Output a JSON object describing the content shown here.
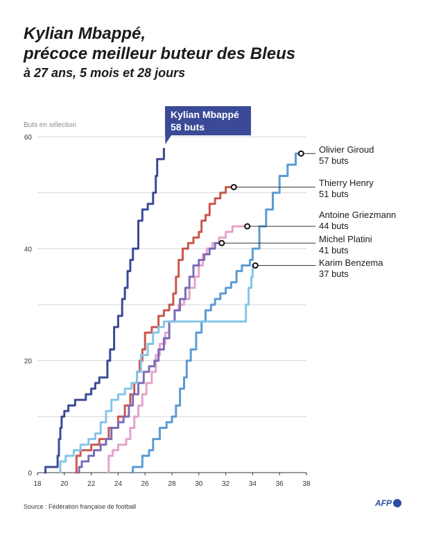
{
  "title_line1": "Kylian Mbappé,",
  "title_line2": "précoce meilleur buteur des Bleus",
  "subtitle": "à 27 ans, 5 mois et 28 jours",
  "source": "Source : Fédération française de football",
  "logo": "AFP",
  "chart_data": {
    "type": "line",
    "ylabel": "Buts en sélection",
    "xlim": [
      18,
      38
    ],
    "ylim": [
      0,
      60
    ],
    "xticks": [
      18,
      20,
      22,
      24,
      26,
      28,
      30,
      32,
      34,
      36,
      38
    ],
    "yticks": [
      0,
      20,
      40,
      60
    ],
    "series": [
      {
        "name": "Kylian Mbappé",
        "value_label": "58 buts",
        "color": "#3a4a96",
        "points": [
          [
            18.5,
            0
          ],
          [
            18.6,
            1
          ],
          [
            19.4,
            1
          ],
          [
            19.5,
            3
          ],
          [
            19.6,
            6
          ],
          [
            19.7,
            8
          ],
          [
            19.8,
            10
          ],
          [
            20.0,
            11
          ],
          [
            20.3,
            12
          ],
          [
            20.8,
            13
          ],
          [
            21.6,
            14
          ],
          [
            22.0,
            15
          ],
          [
            22.3,
            16
          ],
          [
            22.6,
            17
          ],
          [
            23.0,
            17
          ],
          [
            23.2,
            20
          ],
          [
            23.4,
            22
          ],
          [
            23.7,
            26
          ],
          [
            24.0,
            28
          ],
          [
            24.3,
            31
          ],
          [
            24.5,
            33
          ],
          [
            24.7,
            36
          ],
          [
            24.9,
            38
          ],
          [
            25.1,
            40
          ],
          [
            25.5,
            45
          ],
          [
            25.8,
            47
          ],
          [
            26.2,
            48
          ],
          [
            26.6,
            50
          ],
          [
            26.8,
            53
          ],
          [
            26.9,
            56
          ],
          [
            27.4,
            58
          ]
        ]
      },
      {
        "name": "Olivier Giroud",
        "value_label": "57 buts",
        "color": "#5b9bd5",
        "points": [
          [
            25.0,
            0
          ],
          [
            25.1,
            1
          ],
          [
            25.8,
            3
          ],
          [
            26.3,
            4
          ],
          [
            26.6,
            6
          ],
          [
            27.1,
            8
          ],
          [
            27.6,
            9
          ],
          [
            28.0,
            10
          ],
          [
            28.3,
            12
          ],
          [
            28.6,
            15
          ],
          [
            28.9,
            17
          ],
          [
            29.1,
            20
          ],
          [
            29.4,
            22
          ],
          [
            29.8,
            25
          ],
          [
            30.2,
            27
          ],
          [
            30.5,
            29
          ],
          [
            30.9,
            30
          ],
          [
            31.2,
            31
          ],
          [
            31.6,
            32
          ],
          [
            32.0,
            33
          ],
          [
            32.4,
            34
          ],
          [
            32.8,
            36
          ],
          [
            33.2,
            37
          ],
          [
            33.8,
            38
          ],
          [
            34.0,
            40
          ],
          [
            34.5,
            44
          ],
          [
            35.0,
            47
          ],
          [
            35.5,
            50
          ],
          [
            36.0,
            53
          ],
          [
            36.6,
            55
          ],
          [
            37.2,
            57
          ],
          [
            37.5,
            57
          ]
        ]
      },
      {
        "name": "Thierry Henry",
        "value_label": "51 buts",
        "color": "#c9574e",
        "points": [
          [
            20.8,
            0
          ],
          [
            20.9,
            3
          ],
          [
            21.2,
            4
          ],
          [
            22.0,
            5
          ],
          [
            22.6,
            6
          ],
          [
            23.3,
            8
          ],
          [
            24.0,
            10
          ],
          [
            24.5,
            12
          ],
          [
            24.9,
            14
          ],
          [
            25.2,
            16
          ],
          [
            25.4,
            18
          ],
          [
            25.6,
            20
          ],
          [
            25.8,
            22
          ],
          [
            26.0,
            25
          ],
          [
            26.5,
            26
          ],
          [
            27.0,
            28
          ],
          [
            27.4,
            29
          ],
          [
            27.8,
            30
          ],
          [
            28.1,
            32
          ],
          [
            28.3,
            35
          ],
          [
            28.5,
            38
          ],
          [
            28.8,
            40
          ],
          [
            29.2,
            41
          ],
          [
            29.6,
            42
          ],
          [
            30.0,
            43
          ],
          [
            30.2,
            45
          ],
          [
            30.5,
            46
          ],
          [
            30.8,
            48
          ],
          [
            31.2,
            49
          ],
          [
            31.6,
            50
          ],
          [
            32.0,
            51
          ],
          [
            32.5,
            51
          ]
        ]
      },
      {
        "name": "Antoine Griezmann",
        "value_label": "44 buts",
        "color": "#e4a3c9",
        "points": [
          [
            23.2,
            0
          ],
          [
            23.3,
            3
          ],
          [
            23.6,
            4
          ],
          [
            24.0,
            5
          ],
          [
            24.6,
            6
          ],
          [
            24.9,
            8
          ],
          [
            25.2,
            10
          ],
          [
            25.5,
            12
          ],
          [
            25.8,
            14
          ],
          [
            26.1,
            16
          ],
          [
            26.5,
            18
          ],
          [
            26.8,
            21
          ],
          [
            27.1,
            23
          ],
          [
            27.5,
            25
          ],
          [
            27.8,
            27
          ],
          [
            28.2,
            29
          ],
          [
            28.5,
            30
          ],
          [
            28.9,
            31
          ],
          [
            29.3,
            33
          ],
          [
            29.7,
            35
          ],
          [
            30.0,
            37
          ],
          [
            30.3,
            39
          ],
          [
            30.6,
            40
          ],
          [
            31.0,
            41
          ],
          [
            31.5,
            42
          ],
          [
            32.0,
            43
          ],
          [
            32.5,
            44
          ],
          [
            33.5,
            44
          ]
        ]
      },
      {
        "name": "Michel Platini",
        "value_label": "41 buts",
        "color": "#7d6cb8",
        "points": [
          [
            21.0,
            0
          ],
          [
            21.1,
            1
          ],
          [
            21.3,
            2
          ],
          [
            21.8,
            3
          ],
          [
            22.2,
            4
          ],
          [
            22.7,
            5
          ],
          [
            23.1,
            6
          ],
          [
            23.5,
            8
          ],
          [
            24.0,
            9
          ],
          [
            24.4,
            10
          ],
          [
            24.8,
            12
          ],
          [
            25.1,
            14
          ],
          [
            25.5,
            16
          ],
          [
            25.9,
            18
          ],
          [
            26.3,
            19
          ],
          [
            26.7,
            20
          ],
          [
            27.0,
            22
          ],
          [
            27.4,
            24
          ],
          [
            27.8,
            27
          ],
          [
            28.2,
            29
          ],
          [
            28.6,
            31
          ],
          [
            29.0,
            33
          ],
          [
            29.3,
            35
          ],
          [
            29.6,
            37
          ],
          [
            30.0,
            38
          ],
          [
            30.4,
            39
          ],
          [
            30.8,
            40
          ],
          [
            31.2,
            41
          ],
          [
            31.6,
            41
          ]
        ]
      },
      {
        "name": "Karim Benzema",
        "value_label": "37 buts",
        "color": "#84c6e8",
        "points": [
          [
            19.6,
            0
          ],
          [
            19.7,
            2
          ],
          [
            20.1,
            3
          ],
          [
            20.7,
            4
          ],
          [
            21.2,
            5
          ],
          [
            21.8,
            6
          ],
          [
            22.3,
            7
          ],
          [
            22.7,
            9
          ],
          [
            23.1,
            11
          ],
          [
            23.5,
            13
          ],
          [
            24.0,
            14
          ],
          [
            24.5,
            15
          ],
          [
            25.0,
            16
          ],
          [
            25.4,
            18
          ],
          [
            25.7,
            21
          ],
          [
            26.2,
            23
          ],
          [
            26.6,
            25
          ],
          [
            27.0,
            26
          ],
          [
            27.4,
            27
          ],
          [
            28.0,
            27
          ],
          [
            30.0,
            27
          ],
          [
            33.3,
            27
          ],
          [
            33.5,
            30
          ],
          [
            33.7,
            33
          ],
          [
            33.9,
            35
          ],
          [
            34.0,
            37
          ],
          [
            34.1,
            37
          ]
        ]
      }
    ]
  }
}
